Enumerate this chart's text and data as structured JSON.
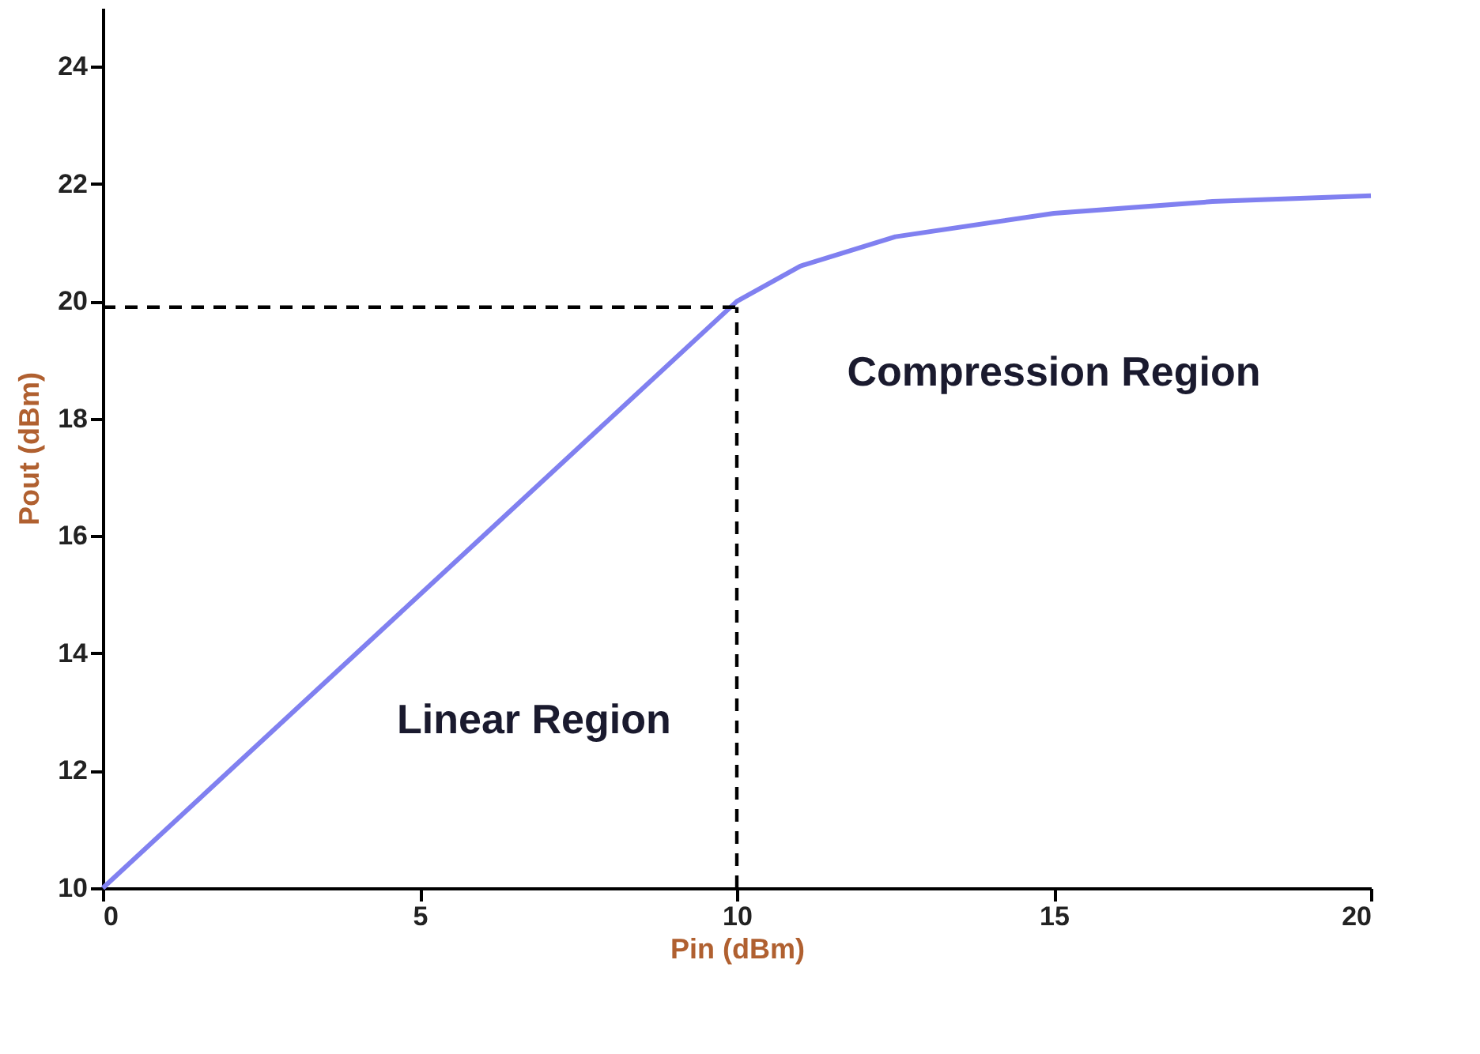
{
  "chart_data": {
    "type": "line",
    "xlabel": "Pin (dBm)",
    "ylabel": "Pout (dBm)",
    "xlim": [
      0,
      20
    ],
    "xticks": [
      0,
      5,
      10,
      15,
      20
    ],
    "ylim": [
      10,
      25
    ],
    "yticks": [
      10,
      12,
      14,
      16,
      18,
      20,
      22,
      24
    ],
    "grid": false,
    "marker": "none",
    "series": [
      {
        "color": "#8080f0",
        "line_style": "solid",
        "x": [
          0,
          10,
          11,
          12.5,
          15,
          17.5,
          20
        ],
        "values": [
          10,
          20,
          20.6,
          21.1,
          21.5,
          21.7,
          21.8
        ]
      },
      {
        "color": "#000000",
        "line_style": "dashed",
        "x": [
          0,
          10
        ],
        "values": [
          19.9,
          19.9
        ]
      },
      {
        "color": "#000000",
        "line_style": "dashed",
        "x": [
          10,
          10
        ],
        "values": [
          10,
          19.9
        ]
      }
    ],
    "annotations": [
      "Linear Region",
      "Compression Region"
    ]
  }
}
